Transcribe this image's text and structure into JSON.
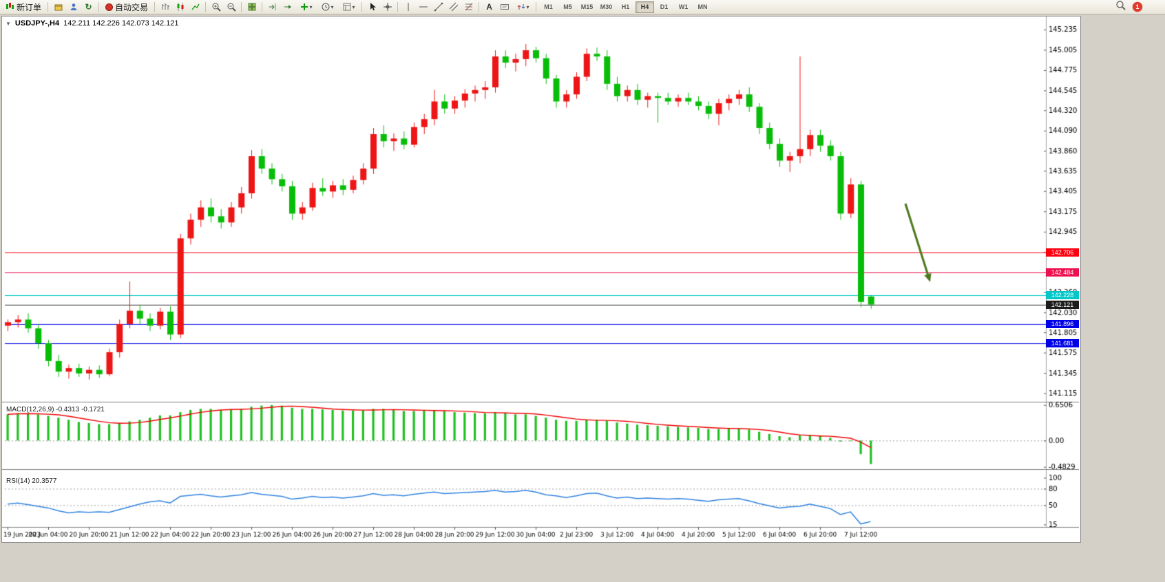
{
  "toolbar": {
    "new_order_label": "新订单",
    "autotrade_label": "自动交易",
    "timeframes": [
      "M1",
      "M5",
      "M15",
      "M30",
      "H1",
      "H4",
      "D1",
      "W1",
      "MN"
    ],
    "active_timeframe": "H4",
    "notification_count": "1"
  },
  "chart": {
    "symbol_period": "USDJPY-,H4",
    "ohlc_text": "142.211 142.226 142.073 142.121"
  },
  "indicators": {
    "macd_label": "MACD(12,26,9) -0.4313 -0.1721",
    "rsi_label": "RSI(14) 20.3577"
  },
  "colors": {
    "up_candle": "#ed1515",
    "down_candle": "#08bd08",
    "macd_hist": "#1fc11f",
    "macd_signal": "#f00000",
    "rsi_line": "#2f82e0",
    "grid": "#9a9a9a",
    "arrow": "#4d7a1f"
  },
  "chart_data": [
    {
      "name": "main-price-pane",
      "type": "candlestick",
      "symbol": "USDJPY-",
      "period": "H4",
      "ylim": [
        141.05,
        145.32
      ],
      "y_axis_ticks": [
        "145.235",
        "145.005",
        "144.775",
        "144.545",
        "144.320",
        "144.090",
        "143.860",
        "143.635",
        "143.405",
        "143.175",
        "142.945",
        "142.715",
        "142.485",
        "142.260",
        "142.030",
        "141.805",
        "141.575",
        "141.345",
        "141.115"
      ],
      "x_axis_labels": [
        "19 Jun 2023",
        "20 Jun 04:00",
        "20 Jun 20:00",
        "21 Jun 12:00",
        "22 Jun 04:00",
        "22 Jun 20:00",
        "23 Jun 12:00",
        "26 Jun 04:00",
        "26 Jun 20:00",
        "27 Jun 12:00",
        "28 Jun 04:00",
        "28 Jun 20:00",
        "29 Jun 12:00",
        "30 Jun 04:00",
        "2 Jul 23:00",
        "3 Jul 12:00",
        "4 Jul 04:00",
        "4 Jul 20:00",
        "5 Jul 12:00",
        "6 Jul 04:00",
        "6 Jul 20:00",
        "7 Jul 12:00"
      ],
      "candles": [
        [
          141.88,
          141.95,
          141.82,
          141.92
        ],
        [
          141.92,
          142.0,
          141.86,
          141.95
        ],
        [
          141.95,
          142.02,
          141.8,
          141.85
        ],
        [
          141.85,
          141.9,
          141.62,
          141.68
        ],
        [
          141.68,
          141.72,
          141.42,
          141.48
        ],
        [
          141.48,
          141.55,
          141.3,
          141.36
        ],
        [
          141.36,
          141.44,
          141.28,
          141.4
        ],
        [
          141.4,
          141.45,
          141.3,
          141.34
        ],
        [
          141.34,
          141.42,
          141.27,
          141.38
        ],
        [
          141.38,
          141.43,
          141.29,
          141.33
        ],
        [
          141.33,
          141.62,
          141.31,
          141.58
        ],
        [
          141.58,
          141.95,
          141.52,
          141.9
        ],
        [
          141.9,
          142.38,
          141.85,
          142.05
        ],
        [
          142.05,
          142.12,
          141.9,
          141.96
        ],
        [
          141.96,
          142.02,
          141.82,
          141.88
        ],
        [
          141.88,
          142.08,
          141.84,
          142.04
        ],
        [
          142.04,
          142.1,
          141.72,
          141.78
        ],
        [
          141.78,
          142.92,
          141.74,
          142.87
        ],
        [
          142.87,
          143.15,
          142.8,
          143.08
        ],
        [
          143.08,
          143.3,
          143.0,
          143.22
        ],
        [
          143.22,
          143.32,
          143.05,
          143.12
        ],
        [
          143.12,
          143.2,
          142.98,
          143.05
        ],
        [
          143.05,
          143.28,
          143.0,
          143.22
        ],
        [
          143.22,
          143.45,
          143.15,
          143.38
        ],
        [
          143.38,
          143.87,
          143.32,
          143.8
        ],
        [
          143.8,
          143.88,
          143.6,
          143.66
        ],
        [
          143.66,
          143.72,
          143.48,
          143.54
        ],
        [
          143.54,
          143.6,
          143.4,
          143.46
        ],
        [
          143.46,
          143.52,
          143.08,
          143.15
        ],
        [
          143.15,
          143.28,
          143.08,
          143.22
        ],
        [
          143.22,
          143.5,
          143.18,
          143.44
        ],
        [
          143.44,
          143.55,
          143.35,
          143.4
        ],
        [
          143.4,
          143.52,
          143.33,
          143.47
        ],
        [
          143.47,
          143.54,
          143.36,
          143.42
        ],
        [
          143.42,
          143.58,
          143.38,
          143.53
        ],
        [
          143.53,
          143.72,
          143.48,
          143.66
        ],
        [
          143.66,
          144.12,
          143.6,
          144.05
        ],
        [
          144.05,
          144.15,
          143.9,
          143.97
        ],
        [
          143.97,
          144.06,
          143.86,
          144.0
        ],
        [
          144.0,
          144.08,
          143.88,
          143.93
        ],
        [
          143.93,
          144.18,
          143.9,
          144.13
        ],
        [
          144.13,
          144.28,
          144.05,
          144.22
        ],
        [
          144.22,
          144.55,
          144.15,
          144.42
        ],
        [
          144.42,
          144.5,
          144.28,
          144.34
        ],
        [
          144.34,
          144.48,
          144.28,
          144.43
        ],
        [
          144.43,
          144.56,
          144.35,
          144.51
        ],
        [
          144.51,
          144.6,
          144.42,
          144.55
        ],
        [
          144.55,
          144.65,
          144.45,
          144.58
        ],
        [
          144.58,
          145.0,
          144.52,
          144.93
        ],
        [
          144.93,
          145.0,
          144.8,
          144.86
        ],
        [
          144.86,
          144.96,
          144.76,
          144.9
        ],
        [
          144.9,
          145.07,
          144.82,
          145.0
        ],
        [
          145.0,
          145.04,
          144.86,
          144.91
        ],
        [
          144.91,
          144.96,
          144.62,
          144.68
        ],
        [
          144.68,
          144.72,
          144.35,
          144.42
        ],
        [
          144.42,
          144.55,
          144.35,
          144.5
        ],
        [
          144.5,
          144.75,
          144.45,
          144.7
        ],
        [
          144.7,
          145.02,
          144.65,
          144.96
        ],
        [
          144.96,
          145.03,
          144.88,
          144.93
        ],
        [
          144.93,
          145.0,
          144.55,
          144.62
        ],
        [
          144.62,
          144.7,
          144.42,
          144.48
        ],
        [
          144.48,
          144.6,
          144.42,
          144.55
        ],
        [
          144.55,
          144.62,
          144.38,
          144.44
        ],
        [
          144.44,
          144.52,
          144.35,
          144.48
        ],
        [
          144.48,
          144.52,
          144.18,
          144.46
        ],
        [
          144.46,
          144.52,
          144.38,
          144.42
        ],
        [
          144.42,
          144.5,
          144.36,
          144.46
        ],
        [
          144.46,
          144.52,
          144.38,
          144.42
        ],
        [
          144.42,
          144.48,
          144.32,
          144.37
        ],
        [
          144.37,
          144.42,
          144.22,
          144.28
        ],
        [
          144.28,
          144.45,
          144.15,
          144.4
        ],
        [
          144.4,
          144.5,
          144.32,
          144.45
        ],
        [
          144.45,
          144.55,
          144.38,
          144.5
        ],
        [
          144.5,
          144.58,
          144.3,
          144.36
        ],
        [
          144.36,
          144.4,
          144.05,
          144.12
        ],
        [
          144.12,
          144.18,
          143.88,
          143.94
        ],
        [
          143.94,
          144.0,
          143.68,
          143.75
        ],
        [
          143.75,
          143.85,
          143.62,
          143.8
        ],
        [
          143.8,
          144.93,
          143.72,
          143.88
        ],
        [
          143.88,
          144.1,
          143.8,
          144.04
        ],
        [
          144.04,
          144.1,
          143.85,
          143.92
        ],
        [
          143.92,
          143.98,
          143.75,
          143.8
        ],
        [
          143.8,
          143.85,
          143.08,
          143.15
        ],
        [
          143.15,
          143.55,
          143.1,
          143.48
        ],
        [
          143.48,
          143.52,
          142.09,
          142.15
        ],
        [
          142.211,
          142.226,
          142.073,
          142.121
        ]
      ],
      "levels": [
        {
          "price": 142.706,
          "label": "142.706",
          "color": "#ff0010"
        },
        {
          "price": 142.484,
          "label": "142.484",
          "color": "#ee0f4e"
        },
        {
          "price": 142.228,
          "label": "142.228",
          "color": "#00c8c8"
        },
        {
          "price": 142.121,
          "label": "142.121",
          "color": "#1c1c1c"
        },
        {
          "price": 141.896,
          "label": "141.896",
          "color": "#0000e6"
        },
        {
          "price": 141.681,
          "label": "141.681",
          "color": "#0000e6"
        }
      ],
      "annotation_arrow": {
        "from": [
          1312,
          272
        ],
        "to": [
          1348,
          386
        ]
      }
    },
    {
      "name": "macd-pane",
      "type": "bar",
      "title": "MACD(12,26,9)",
      "current_values": [
        "-0.4313",
        "-0.1721"
      ],
      "ylim": [
        -0.5,
        0.66
      ],
      "axis": [
        "0.6506",
        "0.00",
        "-0.4829"
      ],
      "values": [
        0.48,
        0.5,
        0.5,
        0.48,
        0.45,
        0.42,
        0.38,
        0.34,
        0.32,
        0.3,
        0.3,
        0.32,
        0.35,
        0.38,
        0.42,
        0.46,
        0.46,
        0.52,
        0.56,
        0.58,
        0.58,
        0.56,
        0.56,
        0.58,
        0.62,
        0.64,
        0.65,
        0.64,
        0.6,
        0.58,
        0.58,
        0.57,
        0.56,
        0.55,
        0.55,
        0.56,
        0.58,
        0.58,
        0.56,
        0.54,
        0.54,
        0.55,
        0.56,
        0.54,
        0.52,
        0.51,
        0.5,
        0.5,
        0.52,
        0.5,
        0.48,
        0.48,
        0.45,
        0.42,
        0.38,
        0.36,
        0.36,
        0.38,
        0.38,
        0.36,
        0.33,
        0.31,
        0.29,
        0.28,
        0.27,
        0.26,
        0.25,
        0.24,
        0.23,
        0.21,
        0.21,
        0.22,
        0.22,
        0.2,
        0.16,
        0.12,
        0.08,
        0.06,
        0.1,
        0.1,
        0.08,
        0.05,
        -0.02,
        0.0,
        -0.25,
        -0.4313
      ]
    },
    {
      "name": "rsi-pane",
      "type": "line",
      "title": "RSI(14)",
      "current_value": "20.3577",
      "ylim": [
        13,
        103
      ],
      "axis": [
        "100",
        "80",
        "50",
        "15"
      ],
      "level_lines": [
        80,
        50
      ],
      "values": [
        52,
        54,
        51,
        48,
        45,
        40,
        36,
        38,
        37,
        38,
        37,
        42,
        47,
        52,
        56,
        58,
        54,
        66,
        68,
        70,
        67,
        65,
        67,
        69,
        73,
        70,
        68,
        66,
        61,
        63,
        66,
        64,
        65,
        63,
        65,
        67,
        71,
        68,
        69,
        67,
        70,
        72,
        74,
        71,
        72,
        73,
        74,
        75,
        77,
        74,
        75,
        77,
        74,
        69,
        67,
        64,
        67,
        71,
        72,
        67,
        63,
        65,
        62,
        63,
        62,
        61,
        62,
        61,
        59,
        57,
        60,
        61,
        62,
        58,
        53,
        49,
        45,
        47,
        48,
        52,
        48,
        44,
        33,
        38,
        16,
        20.36
      ]
    }
  ]
}
